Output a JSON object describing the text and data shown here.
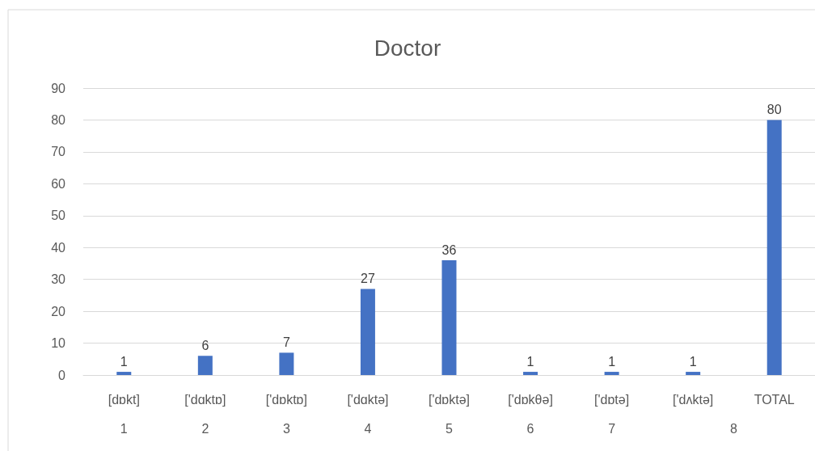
{
  "chart_data": {
    "type": "bar",
    "title": "Doctor",
    "categories": [
      "[dɒkt]",
      "['dɑktɒ]",
      "['dɒktɒ]",
      "['dɑktə]",
      "['dɒktə]",
      "['dɒkθə]",
      "['dɒtə]",
      "['dʌktə]",
      "TOTAL"
    ],
    "values": [
      1,
      6,
      7,
      27,
      36,
      1,
      1,
      1,
      80
    ],
    "color": "#4472c4",
    "ylim": [
      0,
      90
    ],
    "yticks": [
      0,
      10,
      20,
      30,
      40,
      50,
      60,
      70,
      80,
      90
    ],
    "grid": "y",
    "data_labels": true,
    "annotations": [
      "1",
      "2",
      "3",
      "4",
      "5",
      "6",
      "7",
      "8"
    ]
  }
}
